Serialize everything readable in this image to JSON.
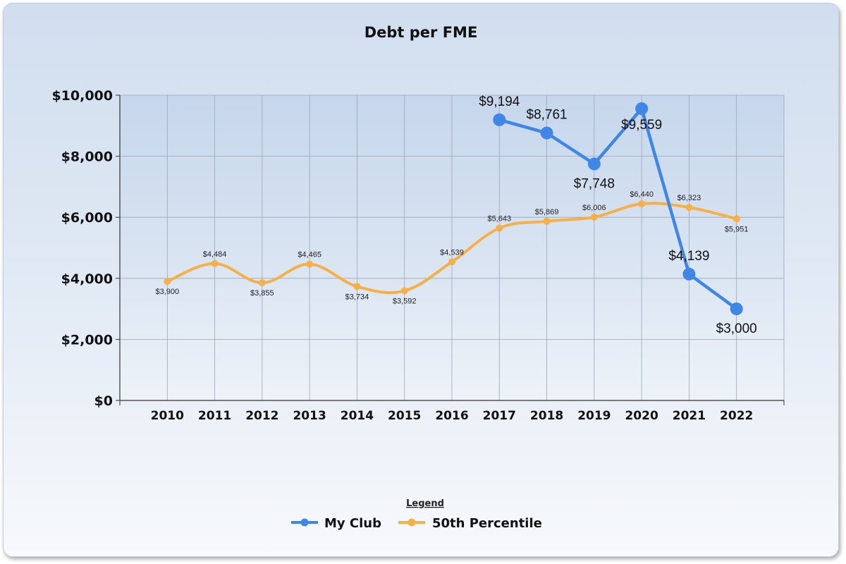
{
  "chart_data": {
    "type": "line",
    "title": "Debt per FME",
    "xlabel": "",
    "ylabel": "",
    "ylim": [
      0,
      10000
    ],
    "yticks": [
      0,
      2000,
      4000,
      6000,
      8000,
      10000
    ],
    "ytick_labels": [
      "$0",
      "$2,000",
      "$4,000",
      "$6,000",
      "$8,000",
      "$10,000"
    ],
    "x": [
      "2010",
      "2011",
      "2012",
      "2013",
      "2014",
      "2015",
      "2016",
      "2017",
      "2018",
      "2019",
      "2020",
      "2021",
      "2022"
    ],
    "grid": true,
    "legend_title": "Legend",
    "legend_position": "bottom-center",
    "series": [
      {
        "name": "My Club",
        "color": "#3f86e6",
        "values": [
          null,
          null,
          null,
          null,
          null,
          null,
          null,
          9194,
          8761,
          7748,
          9559,
          4139,
          3000
        ],
        "labels": [
          null,
          null,
          null,
          null,
          null,
          null,
          null,
          "$9,194",
          "$8,761",
          "$7,748",
          "$9,559",
          "$4,139",
          "$3,000"
        ]
      },
      {
        "name": "50th Percentile",
        "color": "#f5b04a",
        "values": [
          3900,
          4484,
          3855,
          4465,
          3734,
          3592,
          4539,
          5643,
          5869,
          6006,
          6440,
          6323,
          5951
        ],
        "labels": [
          "$3,900",
          "$4,484",
          "$3,855",
          "$4,465",
          "$3,734",
          "$3,592",
          "$4,539",
          "$5,643",
          "$5,869",
          "$6,006",
          "$6,440",
          "$6,323",
          "$5,951"
        ]
      }
    ]
  }
}
